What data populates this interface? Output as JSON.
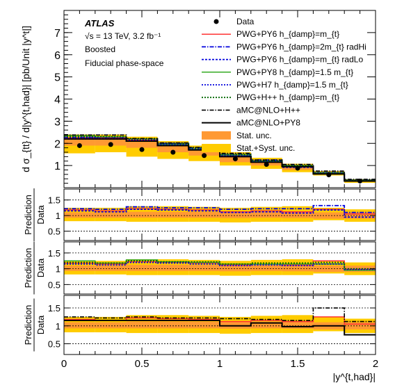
{
  "chart_data": {
    "type": "line",
    "experiment": "ATLAS",
    "annotations": [
      "√s = 13 TeV, 3.2 fb⁻¹",
      "Boosted",
      "Fiducial phase-space"
    ],
    "xlabel": "|y^{t,had}|",
    "xlim": [
      0,
      2
    ],
    "bins": [
      0,
      0.2,
      0.4,
      0.6,
      0.8,
      1.0,
      1.2,
      1.4,
      1.6,
      1.8,
      2.0
    ],
    "top_panel": {
      "ylabel": "d σ_{tt} / d|y^{t,had}| [pb/Unit |y^t|]",
      "ylim": [
        0,
        8
      ],
      "yticks": [
        1,
        2,
        3,
        4,
        5,
        6,
        7
      ],
      "data": [
        1.9,
        1.95,
        1.72,
        1.6,
        1.45,
        1.3,
        1.05,
        0.88,
        0.58,
        0.3
      ],
      "stat_band": [
        [
          1.9,
          2.2
        ],
        [
          1.9,
          2.2
        ],
        [
          1.8,
          2.1
        ],
        [
          1.6,
          1.95
        ],
        [
          1.45,
          1.75
        ],
        [
          1.15,
          1.45
        ],
        [
          1.0,
          1.25
        ],
        [
          0.8,
          0.98
        ],
        [
          0.6,
          0.7
        ],
        [
          0.27,
          0.33
        ]
      ],
      "syst_band": [
        [
          1.55,
          2.4
        ],
        [
          1.6,
          2.4
        ],
        [
          1.4,
          2.3
        ],
        [
          1.3,
          2.1
        ],
        [
          1.2,
          1.9
        ],
        [
          1.0,
          1.6
        ],
        [
          0.85,
          1.35
        ],
        [
          0.7,
          1.08
        ],
        [
          0.55,
          0.75
        ],
        [
          0.22,
          0.38
        ]
      ],
      "predictions": [
        {
          "values": [
            2.25,
            2.25,
            2.15,
            1.95,
            1.75,
            1.45,
            1.2,
            0.95,
            0.65,
            0.32
          ]
        },
        {
          "values": [
            2.28,
            2.28,
            2.2,
            2.0,
            1.8,
            1.5,
            1.25,
            1.0,
            0.68,
            0.34
          ]
        },
        {
          "values": [
            2.2,
            2.2,
            2.1,
            1.92,
            1.72,
            1.42,
            1.18,
            0.92,
            0.63,
            0.31
          ]
        },
        {
          "values": [
            2.35,
            2.3,
            2.2,
            1.95,
            1.75,
            1.47,
            1.2,
            0.98,
            0.65,
            0.32
          ]
        },
        {
          "values": [
            2.25,
            2.22,
            2.15,
            1.95,
            1.75,
            1.45,
            1.2,
            0.95,
            0.65,
            0.32
          ]
        },
        {
          "values": [
            2.3,
            2.3,
            2.2,
            2.0,
            1.8,
            1.5,
            1.22,
            1.0,
            0.68,
            0.34
          ]
        },
        {
          "values": [
            2.38,
            2.38,
            2.22,
            2.02,
            1.82,
            1.55,
            1.25,
            1.05,
            0.75,
            0.38
          ]
        },
        {
          "values": [
            2.2,
            2.2,
            2.1,
            1.9,
            1.7,
            1.4,
            1.15,
            0.95,
            0.62,
            0.3
          ]
        }
      ]
    },
    "ratio_panels": [
      {
        "ylabel": "Prediction / Data",
        "ylim": [
          0.2,
          1.85
        ],
        "yticks": [
          0.5,
          1.0,
          1.5
        ],
        "stat_band": [
          [
            0.93,
            1.1
          ],
          [
            0.93,
            1.1
          ],
          [
            0.93,
            1.12
          ],
          [
            0.93,
            1.12
          ],
          [
            0.93,
            1.12
          ],
          [
            0.92,
            1.12
          ],
          [
            0.93,
            1.12
          ],
          [
            0.92,
            1.12
          ],
          [
            0.9,
            1.1
          ],
          [
            0.9,
            1.1
          ]
        ],
        "syst_band": [
          [
            0.82,
            1.25
          ],
          [
            0.82,
            1.25
          ],
          [
            0.8,
            1.3
          ],
          [
            0.8,
            1.3
          ],
          [
            0.8,
            1.28
          ],
          [
            0.78,
            1.25
          ],
          [
            0.8,
            1.28
          ],
          [
            0.8,
            1.3
          ],
          [
            0.85,
            1.25
          ],
          [
            0.8,
            1.2
          ]
        ],
        "series": [
          {
            "style": 0,
            "values": [
              1.18,
              1.15,
              1.22,
              1.2,
              1.18,
              1.12,
              1.15,
              1.12,
              1.2,
              1.05
            ]
          },
          {
            "style": 1,
            "values": [
              1.22,
              1.2,
              1.28,
              1.25,
              1.25,
              1.2,
              1.22,
              1.22,
              1.32,
              1.1
            ]
          },
          {
            "style": 2,
            "values": [
              1.15,
              1.12,
              1.2,
              1.18,
              1.15,
              1.1,
              1.12,
              1.08,
              1.18,
              0.95
            ]
          }
        ]
      },
      {
        "ylabel": "Prediction / Data",
        "ylim": [
          0.2,
          1.85
        ],
        "yticks": [
          0.5,
          1.0,
          1.5
        ],
        "stat_band": [
          [
            0.93,
            1.1
          ],
          [
            0.93,
            1.1
          ],
          [
            0.93,
            1.12
          ],
          [
            0.93,
            1.12
          ],
          [
            0.93,
            1.12
          ],
          [
            0.92,
            1.12
          ],
          [
            0.93,
            1.12
          ],
          [
            0.92,
            1.12
          ],
          [
            0.9,
            1.1
          ],
          [
            0.9,
            1.1
          ]
        ],
        "syst_band": [
          [
            0.82,
            1.25
          ],
          [
            0.82,
            1.25
          ],
          [
            0.8,
            1.3
          ],
          [
            0.8,
            1.3
          ],
          [
            0.8,
            1.28
          ],
          [
            0.78,
            1.25
          ],
          [
            0.8,
            1.28
          ],
          [
            0.8,
            1.3
          ],
          [
            0.85,
            1.25
          ],
          [
            0.8,
            1.2
          ]
        ],
        "series": [
          {
            "style": 0,
            "values": [
              1.18,
              1.15,
              1.22,
              1.2,
              1.18,
              1.12,
              1.15,
              1.12,
              1.25,
              0.98
            ]
          },
          {
            "style": 3,
            "values": [
              1.25,
              1.18,
              1.28,
              1.22,
              1.2,
              1.15,
              1.15,
              1.15,
              1.15,
              0.95
            ]
          },
          {
            "style": 4,
            "values": [
              1.15,
              1.12,
              1.2,
              1.18,
              1.15,
              1.1,
              1.12,
              1.1,
              1.15,
              0.98
            ]
          },
          {
            "style": 5,
            "values": [
              1.2,
              1.18,
              1.25,
              1.22,
              1.22,
              1.15,
              1.18,
              1.18,
              1.2,
              1.0
            ]
          }
        ]
      },
      {
        "ylabel": "Prediction / Data",
        "ylim": [
          0.2,
          1.85
        ],
        "yticks": [
          0.5,
          1.0,
          1.5
        ],
        "stat_band": [
          [
            0.93,
            1.1
          ],
          [
            0.93,
            1.1
          ],
          [
            0.93,
            1.12
          ],
          [
            0.93,
            1.12
          ],
          [
            0.93,
            1.12
          ],
          [
            0.92,
            1.12
          ],
          [
            0.93,
            1.12
          ],
          [
            0.92,
            1.12
          ],
          [
            0.9,
            1.1
          ],
          [
            0.9,
            1.1
          ]
        ],
        "syst_band": [
          [
            0.82,
            1.25
          ],
          [
            0.82,
            1.25
          ],
          [
            0.8,
            1.3
          ],
          [
            0.8,
            1.3
          ],
          [
            0.8,
            1.28
          ],
          [
            0.78,
            1.25
          ],
          [
            0.8,
            1.28
          ],
          [
            0.8,
            1.3
          ],
          [
            0.85,
            1.25
          ],
          [
            0.8,
            1.2
          ]
        ],
        "series": [
          {
            "style": 0,
            "values": [
              1.18,
              1.15,
              1.22,
              1.2,
              1.18,
              1.12,
              1.15,
              1.12,
              1.25,
              1.05
            ]
          },
          {
            "style": 6,
            "values": [
              1.25,
              1.22,
              1.25,
              1.22,
              1.22,
              1.2,
              1.18,
              1.15,
              1.5,
              1.12
            ]
          },
          {
            "style": 7,
            "values": [
              1.15,
              1.15,
              1.15,
              1.15,
              1.15,
              1.0,
              1.08,
              0.98,
              1.0,
              0.75
            ]
          }
        ]
      }
    ],
    "legend": {
      "placement": "top-right",
      "entries": [
        {
          "label": "Data",
          "kind": "marker"
        },
        {
          "label": "PWG+PY6 h_{damp}=m_{t}",
          "kind": "line",
          "style": 0
        },
        {
          "label": "PWG+PY6 h_{damp}=2m_{t} radHi",
          "kind": "line",
          "style": 1
        },
        {
          "label": "PWG+PY6 h_{damp}=m_{t} radLo",
          "kind": "line",
          "style": 2
        },
        {
          "label": "PWG+PY8 h_{damp}=1.5 m_{t}",
          "kind": "line",
          "style": 3
        },
        {
          "label": "PWG+H7 h_{damp}=1.5 m_{t}",
          "kind": "line",
          "style": 4
        },
        {
          "label": "PWG+H++ h_{damp}=m_{t}",
          "kind": "line",
          "style": 5
        },
        {
          "label": "aMC@NLO+H++",
          "kind": "line",
          "style": 6
        },
        {
          "label": "aMC@NLO+PY8",
          "kind": "line",
          "style": 7
        },
        {
          "label": "Stat. unc.",
          "kind": "box",
          "color": "#ff9933"
        },
        {
          "label": "Stat.+Syst. unc.",
          "kind": "box",
          "color": "#ffcc00"
        }
      ]
    },
    "styles": [
      {
        "color": "#ff3333",
        "dash": "",
        "width": 1.5
      },
      {
        "color": "#0000dd",
        "dash": "6,2,1.5,2",
        "width": 1.8
      },
      {
        "color": "#0000dd",
        "dash": "3,2",
        "width": 1.8
      },
      {
        "color": "#33aa22",
        "dash": "",
        "width": 1.5
      },
      {
        "color": "#0000dd",
        "dash": "2,2",
        "width": 1.8
      },
      {
        "color": "#006600",
        "dash": "2,2",
        "width": 1.8
      },
      {
        "color": "#000000",
        "dash": "6,2,1.5,2",
        "width": 1.6
      },
      {
        "color": "#000000",
        "dash": "",
        "width": 2
      }
    ],
    "colors": {
      "stat": "#ff9933",
      "syst": "#ffcc00",
      "data": "#000000"
    }
  }
}
